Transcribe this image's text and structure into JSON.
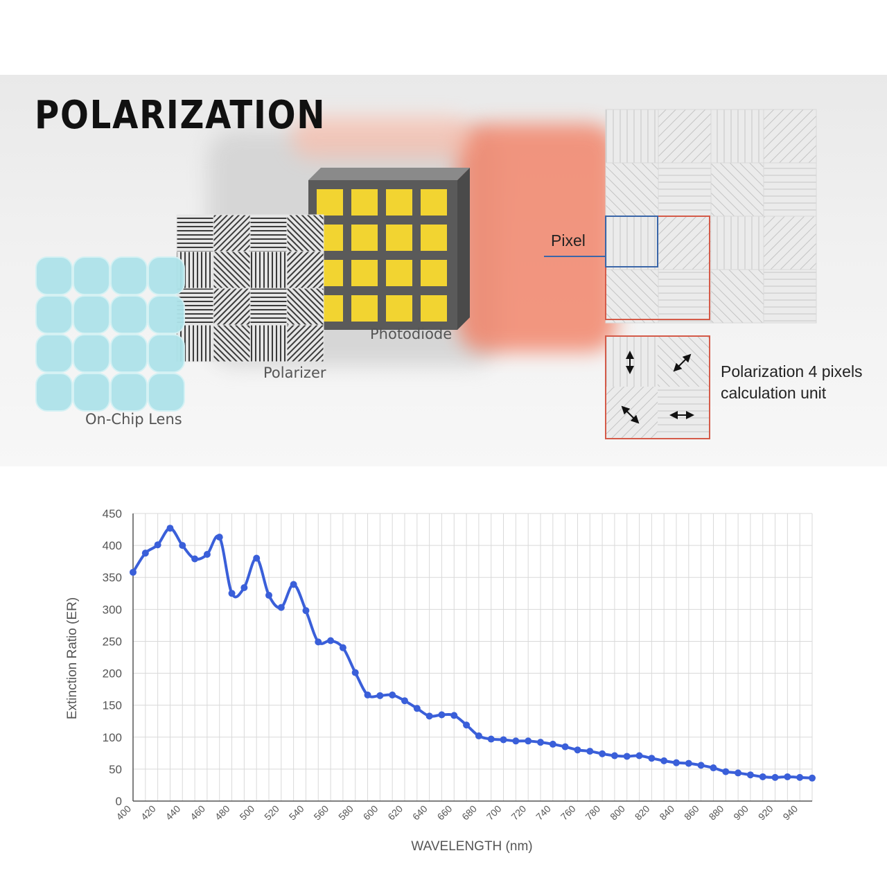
{
  "diagram": {
    "title": "POLARIZATION",
    "labels": {
      "on_chip_lens": "On-Chip Lens",
      "polarizer": "Polarizer",
      "photodiode": "Photodiode",
      "pixel": "Pixel",
      "unit_line1": "Polarization 4 pixels",
      "unit_line2": "calculation unit"
    },
    "colors": {
      "photodiode_cell": "#f2d431",
      "lens": "#aee3ea",
      "pixel_outline": "#3a66a8",
      "unit_outline": "#d45a48",
      "background_accent": "#f06a4a"
    },
    "arrow_icons": [
      "vertical-arrow-icon",
      "diagonal-up-right-arrow-icon",
      "diagonal-down-right-arrow-icon",
      "horizontal-arrow-icon"
    ]
  },
  "chart_data": {
    "type": "line",
    "xlabel": "WAVELENGTH (nm)",
    "ylabel": "Extinction Ratio (ER)",
    "xlim": [
      400,
      950
    ],
    "ylim": [
      0,
      450
    ],
    "yticks": [
      0,
      50,
      100,
      150,
      200,
      250,
      300,
      350,
      400,
      450
    ],
    "xticks": [
      400,
      420,
      440,
      460,
      480,
      500,
      520,
      540,
      560,
      580,
      600,
      620,
      640,
      660,
      680,
      700,
      720,
      740,
      760,
      780,
      800,
      820,
      840,
      860,
      880,
      900,
      920,
      940
    ],
    "grid": true,
    "line_color": "#3a5fd9",
    "series": [
      {
        "x": [
          400,
          410,
          420,
          430,
          440,
          450,
          460,
          470,
          480,
          490,
          500,
          510,
          520,
          530,
          540,
          550,
          560,
          570,
          580,
          590,
          600,
          610,
          620,
          630,
          640,
          650,
          660,
          670,
          680,
          690,
          700,
          710,
          720,
          730,
          740,
          750,
          760,
          770,
          780,
          790,
          800,
          810,
          820,
          830,
          840,
          850,
          860,
          870,
          880,
          890,
          900,
          910,
          920,
          930,
          940,
          950
        ],
        "values": [
          358,
          388,
          401,
          427,
          400,
          379,
          386,
          413,
          325,
          334,
          380,
          322,
          303,
          339,
          298,
          249,
          251,
          240,
          201,
          166,
          165,
          166,
          157,
          145,
          133,
          135,
          134,
          119,
          102,
          97,
          96,
          94,
          94,
          92,
          89,
          85,
          80,
          78,
          74,
          71,
          70,
          71,
          67,
          63,
          60,
          59,
          56,
          52,
          46,
          44,
          41,
          38,
          37,
          38,
          37,
          36
        ]
      }
    ]
  }
}
